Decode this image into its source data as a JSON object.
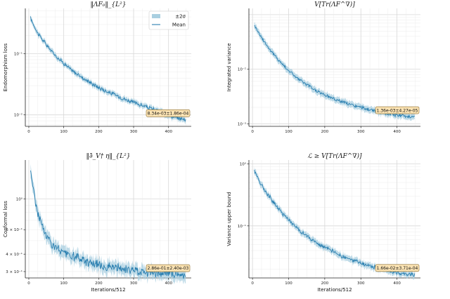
{
  "chart_data": [
    {
      "type": "line",
      "title": "‖ΛF₀‖_{L²}",
      "xlabel": "",
      "ylabel": "Endomorphism loss",
      "yscale": "log",
      "xlim": [
        -10,
        465
      ],
      "ylim": [
        0.0065,
        0.55
      ],
      "xticks": [
        0,
        100,
        200,
        300,
        400
      ],
      "xtick_labels": [
        "0",
        "100",
        "200",
        "300",
        "400"
      ],
      "yticks": [
        0.01,
        0.1
      ],
      "ytick_labels": [
        "10⁻²",
        "10⁻¹"
      ],
      "grid": true,
      "legend": {
        "position": "top-right",
        "entries": [
          "±2σ",
          "Mean"
        ]
      },
      "series": [
        {
          "name": "Mean",
          "x": [
            5,
            25,
            50,
            75,
            100,
            125,
            150,
            175,
            200,
            225,
            250,
            275,
            300,
            325,
            350,
            375,
            400,
            425,
            450
          ],
          "values": [
            0.38,
            0.22,
            0.14,
            0.095,
            0.07,
            0.052,
            0.042,
            0.034,
            0.028,
            0.024,
            0.021,
            0.018,
            0.016,
            0.0142,
            0.0127,
            0.0113,
            0.0099,
            0.0089,
            0.0084
          ],
          "band": 0.08
        }
      ],
      "annotation": "8.34e-03±1.86e-04"
    },
    {
      "type": "line",
      "title": "V[Tr(ΛF^∇)]",
      "xlabel": "",
      "ylabel": "Integrated variance",
      "yscale": "log",
      "xlim": [
        -10,
        465
      ],
      "ylim": [
        0.0009,
        0.13
      ],
      "xticks": [
        0,
        100,
        200,
        300,
        400
      ],
      "xtick_labels": [
        "0",
        "100",
        "200",
        "300",
        "400"
      ],
      "yticks": [
        0.001,
        0.01
      ],
      "ytick_labels": [
        "10⁻³",
        "10⁻²"
      ],
      "grid": true,
      "series": [
        {
          "name": "Mean",
          "x": [
            5,
            25,
            50,
            75,
            100,
            125,
            150,
            175,
            200,
            225,
            250,
            275,
            300,
            325,
            350,
            375,
            400,
            425,
            450
          ],
          "values": [
            0.065,
            0.038,
            0.022,
            0.014,
            0.0095,
            0.0068,
            0.0052,
            0.0041,
            0.0034,
            0.0029,
            0.0025,
            0.0022,
            0.002,
            0.0018,
            0.00165,
            0.00155,
            0.00145,
            0.00138,
            0.00136
          ],
          "band": 0.12
        }
      ],
      "annotation": "1.36e-03±4.27e-05"
    },
    {
      "type": "line",
      "title": "‖∂̄_V† η‖_{L²}",
      "xlabel": "Iterations/512",
      "ylabel": "Conformal loss",
      "yscale": "log",
      "xlim": [
        -10,
        465
      ],
      "ylim": [
        0.27,
        1.9
      ],
      "xticks": [
        0,
        100,
        200,
        300,
        400
      ],
      "xtick_labels": [
        "0",
        "100",
        "200",
        "300",
        "400"
      ],
      "yticks": [
        0.3,
        0.4,
        0.6,
        1.0
      ],
      "ytick_labels": [
        "3 × 10⁻¹",
        "4 × 10⁻¹",
        "6 × 10⁻¹",
        "10⁰"
      ],
      "grid": true,
      "series": [
        {
          "name": "Mean",
          "x": [
            5,
            15,
            25,
            40,
            55,
            75,
            100,
            125,
            150,
            175,
            200,
            225,
            250,
            275,
            300,
            325,
            350,
            375,
            400,
            425,
            450
          ],
          "values": [
            1.6,
            1.1,
            0.8,
            0.62,
            0.52,
            0.45,
            0.41,
            0.385,
            0.365,
            0.35,
            0.335,
            0.325,
            0.318,
            0.31,
            0.305,
            0.3,
            0.296,
            0.292,
            0.289,
            0.287,
            0.286
          ],
          "band": 0.08
        }
      ],
      "annotation": "2.86e-01±2.40e-03"
    },
    {
      "type": "line",
      "title": "ℒ ≥ V[Tr(ΛF^∇)]",
      "xlabel": "Iterations/512",
      "ylabel": "Variance upper bound",
      "yscale": "log",
      "xlim": [
        -10,
        465
      ],
      "ylim": [
        0.0145,
        1.15
      ],
      "xticks": [
        0,
        100,
        200,
        300,
        400
      ],
      "xtick_labels": [
        "0",
        "100",
        "200",
        "300",
        "400"
      ],
      "yticks": [
        0.1,
        1.0
      ],
      "ytick_labels": [
        "10⁻¹",
        "10⁰"
      ],
      "grid": true,
      "series": [
        {
          "name": "Mean",
          "x": [
            5,
            25,
            50,
            75,
            100,
            125,
            150,
            175,
            200,
            225,
            250,
            275,
            300,
            325,
            350,
            375,
            400,
            425,
            450
          ],
          "values": [
            0.78,
            0.45,
            0.28,
            0.18,
            0.125,
            0.09,
            0.068,
            0.054,
            0.045,
            0.038,
            0.032,
            0.028,
            0.025,
            0.0225,
            0.0205,
            0.019,
            0.0178,
            0.0168,
            0.0166
          ],
          "band": 0.1
        }
      ],
      "annotation": "1.66e-02±3.71e-04"
    }
  ],
  "colors": {
    "line": "#2a7fb0",
    "band": "#a9cfe0",
    "annotation_fill": "#fbe3b3",
    "annotation_edge": "#8a6a2a",
    "grid_major": "#d8d8d8",
    "grid_minor": "#ececec"
  }
}
